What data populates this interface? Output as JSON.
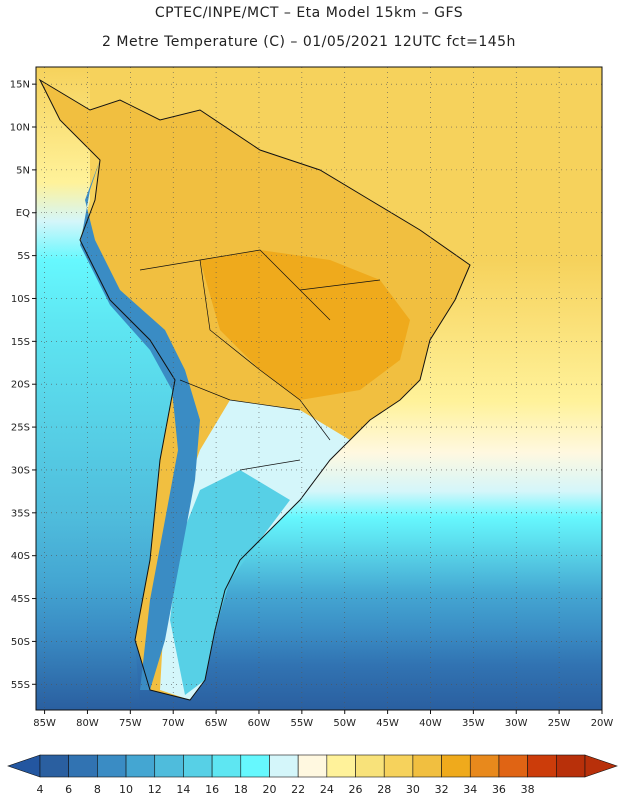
{
  "header": {
    "line1": "CPTEC/INPE/MCT –  Eta Model 15km – GFS",
    "line2": "2 Metre Temperature (C) – 01/05/2021 12UTC fct=145h"
  },
  "map": {
    "lat_labels": [
      "15N",
      "10N",
      "5N",
      "EQ",
      "5S",
      "10S",
      "15S",
      "20S",
      "25S",
      "30S",
      "35S",
      "40S",
      "45S",
      "50S",
      "55S"
    ],
    "lat_values": [
      15,
      10,
      5,
      0,
      -5,
      -10,
      -15,
      -20,
      -25,
      -30,
      -35,
      -40,
      -45,
      -50,
      -55
    ],
    "lon_labels": [
      "85W",
      "80W",
      "75W",
      "70W",
      "65W",
      "60W",
      "55W",
      "50W",
      "45W",
      "40W",
      "35W",
      "30W",
      "25W",
      "20W"
    ],
    "lon_values": [
      -85,
      -80,
      -75,
      -70,
      -65,
      -60,
      -55,
      -50,
      -45,
      -40,
      -35,
      -30,
      -25,
      -20
    ],
    "lon_range": [
      -86,
      -20
    ],
    "lat_range": [
      -58,
      17
    ]
  },
  "colorbar": {
    "labels": [
      "4",
      "6",
      "8",
      "10",
      "12",
      "14",
      "16",
      "18",
      "20",
      "22",
      "24",
      "26",
      "28",
      "30",
      "32",
      "34",
      "36",
      "38"
    ],
    "colors": [
      "#2a5fa0",
      "#3173b2",
      "#3a8cc4",
      "#44a6d2",
      "#4fbcdc",
      "#57d0e6",
      "#5ee6f2",
      "#66f8fe",
      "#d4f6fa",
      "#fff8e0",
      "#fff29a",
      "#f8e27a",
      "#f6d25c",
      "#f1bf40",
      "#efaa1c",
      "#e8891c",
      "#e06414",
      "#cc3c0a",
      "#b8300a"
    ],
    "under_color": "#2356a0",
    "over_color": "#b8300a"
  }
}
